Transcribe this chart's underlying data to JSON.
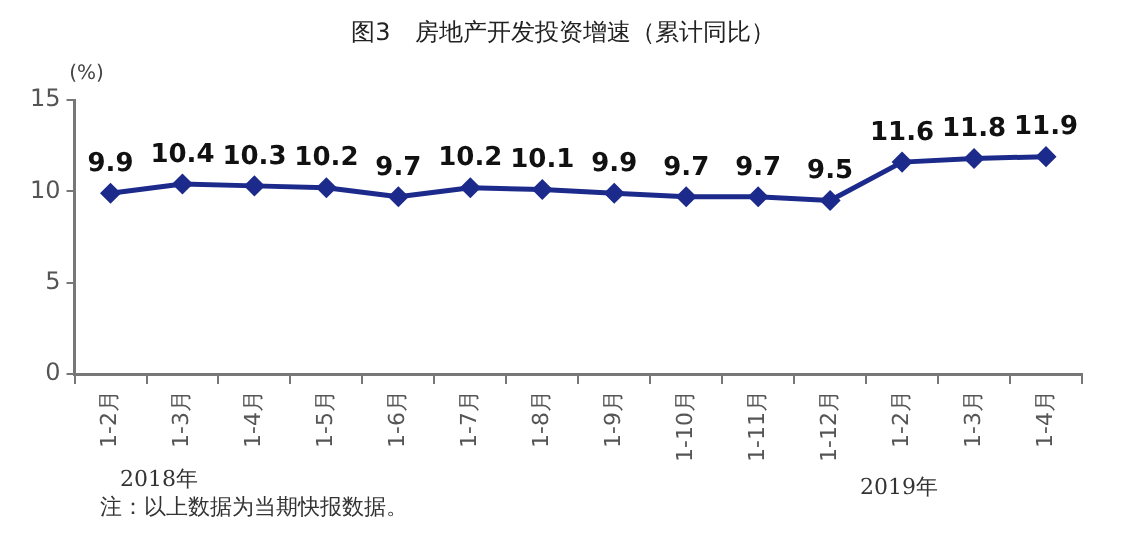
{
  "chart_data": {
    "type": "line",
    "title": "图3　房地产开发投资增速（累计同比）",
    "ylabel": "(%)",
    "categories": [
      "1-2月",
      "1-3月",
      "1-4月",
      "1-5月",
      "1-6月",
      "1-7月",
      "1-8月",
      "1-9月",
      "1-10月",
      "1-11月",
      "1-12月",
      "1-2月",
      "1-3月",
      "1-4月"
    ],
    "series": [
      {
        "color": "#1c2a8c",
        "values": [
          9.9,
          10.4,
          10.3,
          10.2,
          9.7,
          10.2,
          10.1,
          9.9,
          9.7,
          9.7,
          9.5,
          11.6,
          11.8,
          11.9
        ]
      }
    ],
    "ylim": [
      0,
      15
    ],
    "yticks": [
      0,
      5,
      10,
      15
    ],
    "grid": false,
    "legend": false,
    "marker": "diamond",
    "line_style": "solid",
    "data_labels": true,
    "annotations": [
      "2018年",
      "2019年",
      "注：以上数据为当期快报数据。"
    ]
  }
}
